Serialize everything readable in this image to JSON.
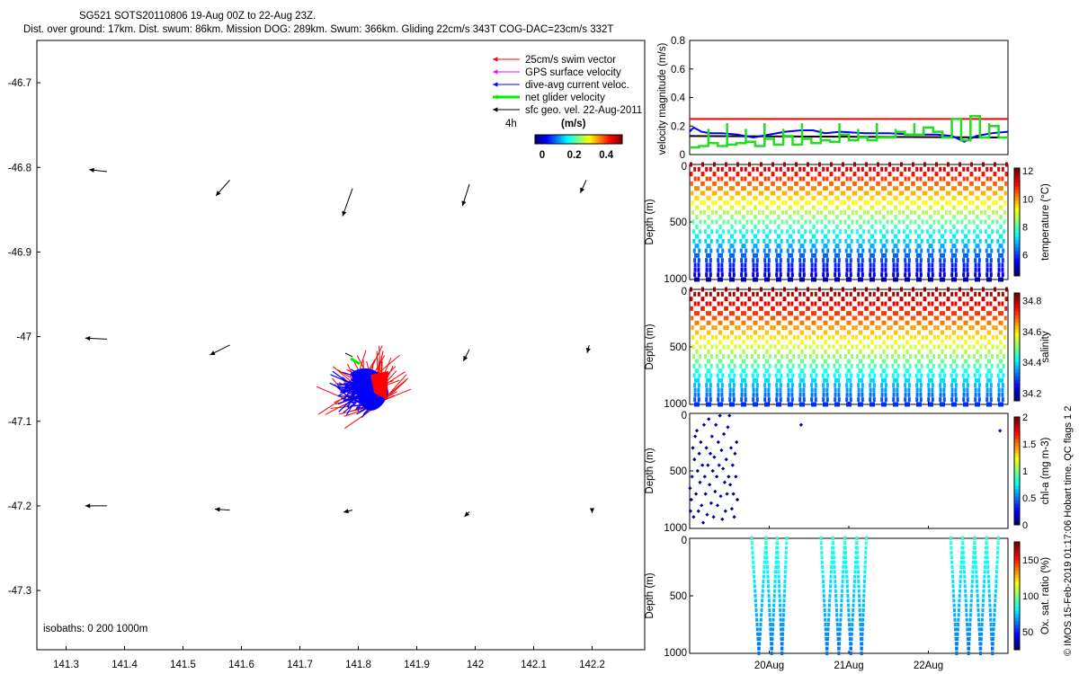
{
  "header": {
    "line1": "SG521 SOTS20110806 19-Aug 00Z to 22-Aug 23Z.",
    "line2": "Dist. over ground: 17km. Dist. swum: 86km. Mission DOG: 289km. Swum: 366km. Gliding 22cm/s 343T COG-DAC=23cm/s 332T"
  },
  "side_credit": "© IMOS 15-Feb-2019 01:17:06 Hobart time. QC flags 1  2",
  "map": {
    "legend": [
      {
        "label": "25cm/s swim vector",
        "color": "#ff0000"
      },
      {
        "label": "GPS surface velocity",
        "color": "#ff00ff"
      },
      {
        "label": "dive-avg current veloc.",
        "color": "#0000ff"
      },
      {
        "label": "net glider velocity",
        "color": "#00ee00"
      },
      {
        "label": "sfc geo. vel. 22-Aug-2011",
        "color": "#000000"
      }
    ],
    "legend_note": "4h",
    "colorbar_title": "(m/s)",
    "colorbar_ticks": [
      "0",
      "0.2",
      "0.4"
    ],
    "isobaths_label": "isobaths: 0   200  1000m",
    "x_ticks": [
      "141.3",
      "141.4",
      "141.5",
      "141.6",
      "141.7",
      "141.8",
      "141.9",
      "142",
      "142.1",
      "142.2"
    ],
    "y_ticks": [
      "-46.7",
      "-46.8",
      "-46.9",
      "-47",
      "-47.1",
      "-47.2",
      "-47.3"
    ]
  },
  "chart_data": [
    {
      "type": "scatter",
      "name": "map",
      "xlim": [
        141.25,
        142.29
      ],
      "ylim": [
        -47.37,
        -46.65
      ],
      "sfc_vectors": [
        {
          "lon": 141.37,
          "lat": -46.805,
          "u": -0.18,
          "v": 0.02
        },
        {
          "lon": 141.58,
          "lat": -46.815,
          "u": -0.14,
          "v": -0.16
        },
        {
          "lon": 141.79,
          "lat": -46.825,
          "u": -0.1,
          "v": -0.28
        },
        {
          "lon": 141.99,
          "lat": -46.82,
          "u": -0.07,
          "v": -0.22
        },
        {
          "lon": 142.19,
          "lat": -46.815,
          "u": -0.06,
          "v": -0.13
        },
        {
          "lon": 141.37,
          "lat": -47.003,
          "u": -0.22,
          "v": 0.01
        },
        {
          "lon": 141.58,
          "lat": -47.01,
          "u": -0.2,
          "v": -0.1
        },
        {
          "lon": 141.99,
          "lat": -47.015,
          "u": -0.06,
          "v": -0.12
        },
        {
          "lon": 142.195,
          "lat": -47.01,
          "u": -0.02,
          "v": -0.08
        },
        {
          "lon": 141.37,
          "lat": -47.2,
          "u": -0.22,
          "v": 0
        },
        {
          "lon": 141.58,
          "lat": -47.205,
          "u": -0.15,
          "v": 0.01
        },
        {
          "lon": 141.79,
          "lat": -47.205,
          "u": -0.09,
          "v": -0.02
        },
        {
          "lon": 141.99,
          "lat": -47.207,
          "u": -0.05,
          "v": -0.05
        },
        {
          "lon": 142.2,
          "lat": -47.205,
          "u": 0,
          "v": -0.03
        }
      ],
      "cluster_center": {
        "lon": 141.83,
        "lat": -47.062
      }
    },
    {
      "type": "line",
      "name": "velocity",
      "ylabel": "velocity magnitude (m/s)",
      "ylim": [
        0,
        0.8
      ],
      "y_ticks": [
        0,
        0.2,
        0.4,
        0.6,
        0.8
      ],
      "xlim": [
        0,
        4
      ],
      "red_level": 0.25,
      "black_level": 0.13,
      "blue": [
        [
          0,
          0.16
        ],
        [
          0.05,
          0.19
        ],
        [
          0.15,
          0.16
        ],
        [
          0.25,
          0.15
        ],
        [
          0.4,
          0.15
        ],
        [
          0.6,
          0.14
        ],
        [
          0.8,
          0.12
        ],
        [
          1.0,
          0.14
        ],
        [
          1.2,
          0.16
        ],
        [
          1.4,
          0.17
        ],
        [
          1.55,
          0.17
        ],
        [
          1.7,
          0.15
        ],
        [
          1.9,
          0.16
        ],
        [
          2.2,
          0.15
        ],
        [
          2.5,
          0.15
        ],
        [
          2.8,
          0.14
        ],
        [
          3.1,
          0.14
        ],
        [
          3.3,
          0.13
        ],
        [
          3.45,
          0.09
        ],
        [
          3.6,
          0.13
        ],
        [
          3.8,
          0.15
        ],
        [
          4.0,
          0.16
        ]
      ],
      "green_steps": [
        0.05,
        0.06,
        0.08,
        0.06,
        0.07,
        0.08,
        0.09,
        0.06,
        0.11,
        0.07,
        0.13,
        0.07,
        0.11,
        0.08,
        0.1,
        0.09,
        0.14,
        0.1,
        0.12,
        0.1,
        0.12,
        0.12,
        0.16,
        0.14,
        0.14,
        0.19,
        0.16,
        0.12,
        0.25,
        0.1,
        0.27,
        0.12,
        0.2,
        0.12
      ]
    },
    {
      "type": "scatter",
      "name": "temperature",
      "ylabel": "Depth (m)",
      "cbar_label": "temperature (°C)",
      "cbar_ticks": [
        6,
        8,
        10,
        12
      ],
      "clim": [
        4.5,
        12.2
      ],
      "ylim": [
        0,
        1000
      ],
      "y_ticks": [
        0,
        500,
        1000
      ],
      "profiles": 27,
      "surface_value": 11.9,
      "deep_value": 4.9
    },
    {
      "type": "scatter",
      "name": "salinity",
      "ylabel": "Depth (m)",
      "cbar_label": "salinity",
      "cbar_ticks": [
        34.2,
        34.4,
        34.6,
        34.8
      ],
      "clim": [
        34.15,
        34.85
      ],
      "ylim": [
        0,
        1000
      ],
      "y_ticks": [
        0,
        500,
        1000
      ],
      "profiles": 27,
      "surface_value": 34.84,
      "deep_value": 34.35
    },
    {
      "type": "scatter",
      "name": "chl-a",
      "ylabel": "Depth (m)",
      "cbar_label": "chl-a (mg m-3)",
      "cbar_ticks": [
        0,
        0.5,
        1,
        1.5,
        2
      ],
      "clim": [
        0,
        2
      ],
      "ylim": [
        0,
        1000
      ],
      "y_ticks": [
        0,
        500,
        1000
      ],
      "points": [
        [
          0.005,
          0.65
        ],
        [
          0.01,
          0.85
        ],
        [
          0.02,
          0.75
        ],
        [
          0.03,
          0.55
        ],
        [
          0.04,
          0.3
        ],
        [
          0.05,
          0.9
        ],
        [
          0.06,
          0.4
        ],
        [
          0.07,
          0.2
        ],
        [
          0.08,
          0.7
        ],
        [
          0.09,
          0.15
        ],
        [
          0.1,
          0.5
        ],
        [
          0.11,
          0.85
        ],
        [
          0.12,
          0.35
        ],
        [
          0.13,
          0.6
        ],
        [
          0.14,
          0.25
        ],
        [
          0.15,
          0.8
        ],
        [
          0.16,
          0.45
        ],
        [
          0.17,
          0.95
        ],
        [
          0.18,
          0.1
        ],
        [
          0.19,
          0.55
        ],
        [
          0.2,
          0.7
        ],
        [
          0.21,
          0.3
        ],
        [
          0.22,
          0.88
        ],
        [
          0.23,
          0.45
        ],
        [
          0.24,
          0.05
        ],
        [
          0.25,
          0.62
        ],
        [
          0.26,
          0.35
        ],
        [
          0.27,
          0.78
        ],
        [
          0.28,
          0.2
        ],
        [
          0.29,
          0.5
        ],
        [
          0.3,
          0.9
        ],
        [
          0.31,
          0.38
        ],
        [
          0.32,
          0.68
        ],
        [
          0.33,
          0.1
        ],
        [
          0.34,
          0.55
        ],
        [
          0.35,
          0.8
        ],
        [
          0.36,
          0.25
        ],
        [
          0.37,
          0.45
        ],
        [
          0.38,
          0.02
        ],
        [
          0.39,
          0.72
        ],
        [
          0.4,
          0.32
        ],
        [
          0.41,
          0.92
        ],
        [
          0.42,
          0.48
        ],
        [
          0.43,
          0.18
        ],
        [
          0.44,
          0.6
        ],
        [
          0.45,
          0.85
        ],
        [
          0.46,
          0.4
        ],
        [
          0.47,
          0.7
        ],
        [
          0.48,
          0.12
        ],
        [
          0.49,
          0.55
        ],
        [
          0.5,
          0.02
        ],
        [
          0.51,
          0.62
        ],
        [
          0.52,
          0.3
        ],
        [
          0.53,
          0.83
        ],
        [
          0.54,
          0.45
        ],
        [
          0.55,
          0.7
        ],
        [
          0.56,
          0.9
        ],
        [
          0.57,
          0.35
        ],
        [
          0.58,
          0.55
        ],
        [
          0.59,
          0.25
        ],
        [
          0.6,
          0.75
        ],
        [
          1.4,
          0.1
        ],
        [
          3.9,
          0.15
        ]
      ],
      "point_value": 0.05
    },
    {
      "type": "scatter",
      "name": "oxygen",
      "ylabel": "Depth (m)",
      "cbar_label": "Ox. sat. ratio (%)",
      "cbar_ticks": [
        50,
        100,
        150
      ],
      "clim": [
        25,
        175
      ],
      "ylim": [
        0,
        1000
      ],
      "y_ticks": [
        0,
        500,
        1000
      ],
      "segments": [
        [
          0.78,
          0.96
        ],
        [
          0.96,
          1.1
        ],
        [
          1.1,
          1.22
        ],
        [
          1.65,
          1.8
        ],
        [
          1.8,
          1.95
        ],
        [
          1.95,
          2.1
        ],
        [
          2.1,
          2.22
        ],
        [
          3.28,
          3.43
        ],
        [
          3.43,
          3.58
        ],
        [
          3.58,
          3.73
        ],
        [
          3.73,
          3.88
        ]
      ],
      "surface_value": 88,
      "deep_value": 60
    }
  ],
  "time_axis": {
    "ticks": [
      "20Aug",
      "21Aug",
      "22Aug"
    ],
    "tick_days": [
      1,
      2,
      3
    ]
  }
}
